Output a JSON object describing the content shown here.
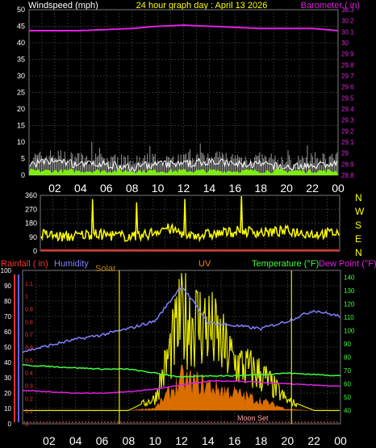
{
  "header": {
    "left_label": "Windspeed (mph)",
    "center_label": "24 hour graph day : April 13 2026",
    "right_label": "Barometer ( in)"
  },
  "time_axis": [
    "02",
    "04",
    "06",
    "08",
    "10",
    "12",
    "14",
    "16",
    "18",
    "20",
    "22",
    "00"
  ],
  "wind_panel": {
    "y_ticks": [
      "50",
      "45",
      "40",
      "35",
      "30",
      "25",
      "20",
      "15",
      "10",
      "5",
      "0"
    ],
    "baro_ticks": [
      "30.3",
      "30.2",
      "30.1",
      "30",
      "29.9",
      "29.8",
      "29.7",
      "29.6",
      "29.5",
      "29.4",
      "29.3",
      "29.2",
      "29.1",
      "29",
      "28.9",
      "28.8"
    ]
  },
  "dir_panel": {
    "y_ticks": [
      "360",
      "270",
      "180",
      "90",
      "0"
    ],
    "compass": [
      "N",
      "W",
      "S",
      "E",
      "N"
    ]
  },
  "bottom_panel": {
    "labels": {
      "rainfall": "Rainfall ( in)",
      "humidity": "Humidity",
      "solar": "Solar",
      "uv": "UV",
      "temperature": "Temperature (°F)",
      "dewpoint": "Dew Point (°F)"
    },
    "humidity_ticks": [
      "100",
      "90",
      "80",
      "70",
      "60",
      "50",
      "40",
      "30",
      "20",
      "10",
      "0"
    ],
    "rain_ticks": [
      "1.1",
      "1",
      "0.9",
      "0.8",
      "0.7",
      "0.6",
      "0.5",
      "0.4",
      "0.3",
      "0.2",
      "0.1",
      "0"
    ],
    "temp_ticks": [
      "140",
      "130",
      "120",
      "110",
      "100",
      "90",
      "80",
      "70",
      "60",
      "50",
      "40"
    ],
    "moon_label": "Moon Set"
  },
  "colors": {
    "barometer": "#e020e0",
    "windspeed": "#ffffff",
    "gust": "#b0b0b0",
    "avg_wind": "#7fff00",
    "direction": "#ffff00",
    "humidity": "#8080ff",
    "temperature": "#40ff40",
    "dewpoint": "#e020e0",
    "solar": "#e8e800",
    "uv": "#ff8000",
    "rain_axis": "#ff3030",
    "humidity_axis": "#6060ff",
    "grid": "#2e2e2e"
  },
  "chart_data": [
    {
      "type": "line",
      "title": "24 hour graph day : April 13 2026",
      "x": [
        "00",
        "02",
        "04",
        "06",
        "08",
        "10",
        "12",
        "14",
        "16",
        "18",
        "20",
        "22",
        "00"
      ],
      "series": [
        {
          "name": "Barometer ( in)",
          "axis": "right",
          "values": [
            30.11,
            30.11,
            30.11,
            30.12,
            30.13,
            30.15,
            30.16,
            30.15,
            30.14,
            30.13,
            30.13,
            30.13,
            30.11
          ]
        },
        {
          "name": "Windspeed (mph)",
          "axis": "left",
          "values": [
            3,
            4,
            3,
            3,
            2,
            3,
            3,
            4,
            3,
            3,
            2,
            3,
            3
          ]
        }
      ],
      "ylim_left": [
        0,
        50
      ],
      "ylim_right": [
        28.8,
        30.3
      ]
    },
    {
      "type": "line",
      "x": [
        "00",
        "02",
        "04",
        "06",
        "08",
        "10",
        "12",
        "14",
        "16",
        "18",
        "20",
        "22",
        "00"
      ],
      "series": [
        {
          "name": "Wind Direction",
          "values": [
            110,
            90,
            110,
            100,
            90,
            150,
            100,
            110,
            130,
            120,
            130,
            110,
            120
          ]
        }
      ],
      "ylim": [
        0,
        360
      ]
    },
    {
      "type": "line",
      "x": [
        "00",
        "02",
        "04",
        "06",
        "08",
        "10",
        "12",
        "14",
        "16",
        "18",
        "20",
        "22",
        "00"
      ],
      "series": [
        {
          "name": "Humidity",
          "axis": "humidity",
          "values": [
            47,
            51,
            55,
            58,
            62,
            67,
            90,
            66,
            64,
            62,
            67,
            74,
            70
          ]
        },
        {
          "name": "Temperature (°F)",
          "axis": "temperature",
          "values": [
            74,
            73,
            72,
            71,
            71,
            68,
            65,
            66,
            66,
            67,
            68,
            67,
            66
          ]
        },
        {
          "name": "Dew Point (°F)",
          "axis": "temperature",
          "values": [
            55,
            54,
            53,
            53,
            54,
            56,
            59,
            62,
            62,
            61,
            60,
            59,
            58
          ]
        },
        {
          "name": "Solar",
          "axis": "temperature",
          "values": [
            40,
            40,
            40,
            40,
            40,
            50,
            118,
            110,
            80,
            70,
            48,
            40,
            40
          ]
        },
        {
          "name": "UV",
          "axis": "temperature",
          "values": [
            40,
            40,
            40,
            40,
            40,
            42,
            65,
            60,
            54,
            48,
            41,
            40,
            40
          ]
        }
      ],
      "ylim_humidity": [
        0,
        100
      ],
      "ylim_rain": [
        0,
        1.1
      ],
      "ylim_temperature": [
        40,
        140
      ]
    }
  ]
}
